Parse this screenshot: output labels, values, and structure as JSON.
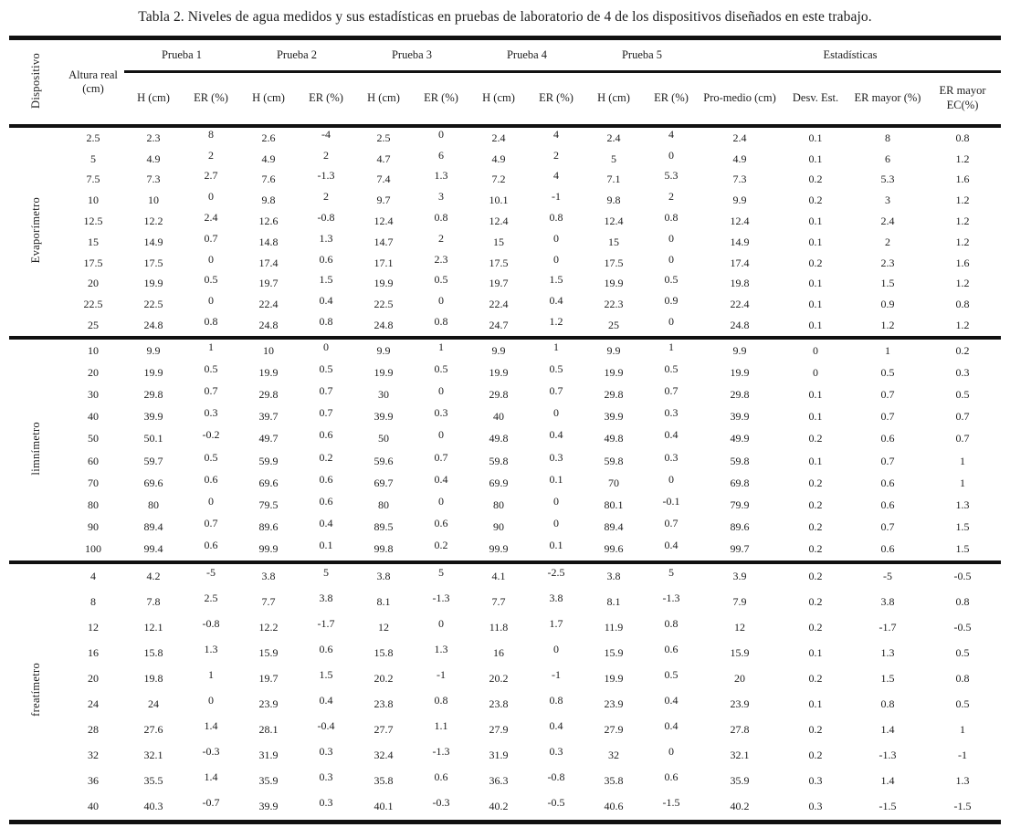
{
  "title": "Tabla 2. Niveles de agua medidos y sus estadísticas en pruebas de laboratorio de 4 de los dispositivos diseñados en este trabajo.",
  "colors": {
    "rule": "#111111",
    "text": "#1d1d1d",
    "background": "#ffffff"
  },
  "table": {
    "corner_label": "Dispositivo",
    "altura_label": "Altura real (cm)",
    "group_headers": [
      "Prueba 1",
      "Prueba 2",
      "Prueba 3",
      "Prueba 4",
      "Prueba 5",
      "Estadísticas"
    ],
    "sub_headers": {
      "h": "H (cm)",
      "er": "ER (%)",
      "promedio": "Pro-medio (cm)",
      "desv": "Desv. Est.",
      "er_mayor": "ER mayor (%)",
      "er_mayor_ec": "ER mayor EC(%)"
    },
    "sections": [
      {
        "device": "Evaporímetro",
        "rows": [
          [
            "2.5",
            "2.3",
            "8",
            "2.6",
            "-4",
            "2.5",
            "0",
            "2.4",
            "4",
            "2.4",
            "4",
            "2.4",
            "0.1",
            "8",
            "0.8"
          ],
          [
            "5",
            "4.9",
            "2",
            "4.9",
            "2",
            "4.7",
            "6",
            "4.9",
            "2",
            "5",
            "0",
            "4.9",
            "0.1",
            "6",
            "1.2"
          ],
          [
            "7.5",
            "7.3",
            "2.7",
            "7.6",
            "-1.3",
            "7.4",
            "1.3",
            "7.2",
            "4",
            "7.1",
            "5.3",
            "7.3",
            "0.2",
            "5.3",
            "1.6"
          ],
          [
            "10",
            "10",
            "0",
            "9.8",
            "2",
            "9.7",
            "3",
            "10.1",
            "-1",
            "9.8",
            "2",
            "9.9",
            "0.2",
            "3",
            "1.2"
          ],
          [
            "12.5",
            "12.2",
            "2.4",
            "12.6",
            "-0.8",
            "12.4",
            "0.8",
            "12.4",
            "0.8",
            "12.4",
            "0.8",
            "12.4",
            "0.1",
            "2.4",
            "1.2"
          ],
          [
            "15",
            "14.9",
            "0.7",
            "14.8",
            "1.3",
            "14.7",
            "2",
            "15",
            "0",
            "15",
            "0",
            "14.9",
            "0.1",
            "2",
            "1.2"
          ],
          [
            "17.5",
            "17.5",
            "0",
            "17.4",
            "0.6",
            "17.1",
            "2.3",
            "17.5",
            "0",
            "17.5",
            "0",
            "17.4",
            "0.2",
            "2.3",
            "1.6"
          ],
          [
            "20",
            "19.9",
            "0.5",
            "19.7",
            "1.5",
            "19.9",
            "0.5",
            "19.7",
            "1.5",
            "19.9",
            "0.5",
            "19.8",
            "0.1",
            "1.5",
            "1.2"
          ],
          [
            "22.5",
            "22.5",
            "0",
            "22.4",
            "0.4",
            "22.5",
            "0",
            "22.4",
            "0.4",
            "22.3",
            "0.9",
            "22.4",
            "0.1",
            "0.9",
            "0.8"
          ],
          [
            "25",
            "24.8",
            "0.8",
            "24.8",
            "0.8",
            "24.8",
            "0.8",
            "24.7",
            "1.2",
            "25",
            "0",
            "24.8",
            "0.1",
            "1.2",
            "1.2"
          ]
        ]
      },
      {
        "device": "limnímetro",
        "rows": [
          [
            "10",
            "9.9",
            "1",
            "10",
            "0",
            "9.9",
            "1",
            "9.9",
            "1",
            "9.9",
            "1",
            "9.9",
            "0",
            "1",
            "0.2"
          ],
          [
            "20",
            "19.9",
            "0.5",
            "19.9",
            "0.5",
            "19.9",
            "0.5",
            "19.9",
            "0.5",
            "19.9",
            "0.5",
            "19.9",
            "0",
            "0.5",
            "0.3"
          ],
          [
            "30",
            "29.8",
            "0.7",
            "29.8",
            "0.7",
            "30",
            "0",
            "29.8",
            "0.7",
            "29.8",
            "0.7",
            "29.8",
            "0.1",
            "0.7",
            "0.5"
          ],
          [
            "40",
            "39.9",
            "0.3",
            "39.7",
            "0.7",
            "39.9",
            "0.3",
            "40",
            "0",
            "39.9",
            "0.3",
            "39.9",
            "0.1",
            "0.7",
            "0.7"
          ],
          [
            "50",
            "50.1",
            "-0.2",
            "49.7",
            "0.6",
            "50",
            "0",
            "49.8",
            "0.4",
            "49.8",
            "0.4",
            "49.9",
            "0.2",
            "0.6",
            "0.7"
          ],
          [
            "60",
            "59.7",
            "0.5",
            "59.9",
            "0.2",
            "59.6",
            "0.7",
            "59.8",
            "0.3",
            "59.8",
            "0.3",
            "59.8",
            "0.1",
            "0.7",
            "1"
          ],
          [
            "70",
            "69.6",
            "0.6",
            "69.6",
            "0.6",
            "69.7",
            "0.4",
            "69.9",
            "0.1",
            "70",
            "0",
            "69.8",
            "0.2",
            "0.6",
            "1"
          ],
          [
            "80",
            "80",
            "0",
            "79.5",
            "0.6",
            "80",
            "0",
            "80",
            "0",
            "80.1",
            "-0.1",
            "79.9",
            "0.2",
            "0.6",
            "1.3"
          ],
          [
            "90",
            "89.4",
            "0.7",
            "89.6",
            "0.4",
            "89.5",
            "0.6",
            "90",
            "0",
            "89.4",
            "0.7",
            "89.6",
            "0.2",
            "0.7",
            "1.5"
          ],
          [
            "100",
            "99.4",
            "0.6",
            "99.9",
            "0.1",
            "99.8",
            "0.2",
            "99.9",
            "0.1",
            "99.6",
            "0.4",
            "99.7",
            "0.2",
            "0.6",
            "1.5"
          ]
        ]
      },
      {
        "device": "freatímetro",
        "rows": [
          [
            "4",
            "4.2",
            "-5",
            "3.8",
            "5",
            "3.8",
            "5",
            "4.1",
            "-2.5",
            "3.8",
            "5",
            "3.9",
            "0.2",
            "-5",
            "-0.5"
          ],
          [
            "8",
            "7.8",
            "2.5",
            "7.7",
            "3.8",
            "8.1",
            "-1.3",
            "7.7",
            "3.8",
            "8.1",
            "-1.3",
            "7.9",
            "0.2",
            "3.8",
            "0.8"
          ],
          [
            "12",
            "12.1",
            "-0.8",
            "12.2",
            "-1.7",
            "12",
            "0",
            "11.8",
            "1.7",
            "11.9",
            "0.8",
            "12",
            "0.2",
            "-1.7",
            "-0.5"
          ],
          [
            "16",
            "15.8",
            "1.3",
            "15.9",
            "0.6",
            "15.8",
            "1.3",
            "16",
            "0",
            "15.9",
            "0.6",
            "15.9",
            "0.1",
            "1.3",
            "0.5"
          ],
          [
            "20",
            "19.8",
            "1",
            "19.7",
            "1.5",
            "20.2",
            "-1",
            "20.2",
            "-1",
            "19.9",
            "0.5",
            "20",
            "0.2",
            "1.5",
            "0.8"
          ],
          [
            "24",
            "24",
            "0",
            "23.9",
            "0.4",
            "23.8",
            "0.8",
            "23.8",
            "0.8",
            "23.9",
            "0.4",
            "23.9",
            "0.1",
            "0.8",
            "0.5"
          ],
          [
            "28",
            "27.6",
            "1.4",
            "28.1",
            "-0.4",
            "27.7",
            "1.1",
            "27.9",
            "0.4",
            "27.9",
            "0.4",
            "27.8",
            "0.2",
            "1.4",
            "1"
          ],
          [
            "32",
            "32.1",
            "-0.3",
            "31.9",
            "0.3",
            "32.4",
            "-1.3",
            "31.9",
            "0.3",
            "32",
            "0",
            "32.1",
            "0.2",
            "-1.3",
            "-1"
          ],
          [
            "36",
            "35.5",
            "1.4",
            "35.9",
            "0.3",
            "35.8",
            "0.6",
            "36.3",
            "-0.8",
            "35.8",
            "0.6",
            "35.9",
            "0.3",
            "1.4",
            "1.3"
          ],
          [
            "40",
            "40.3",
            "-0.7",
            "39.9",
            "0.3",
            "40.1",
            "-0.3",
            "40.2",
            "-0.5",
            "40.6",
            "-1.5",
            "40.2",
            "0.3",
            "-1.5",
            "-1.5"
          ]
        ]
      }
    ]
  }
}
